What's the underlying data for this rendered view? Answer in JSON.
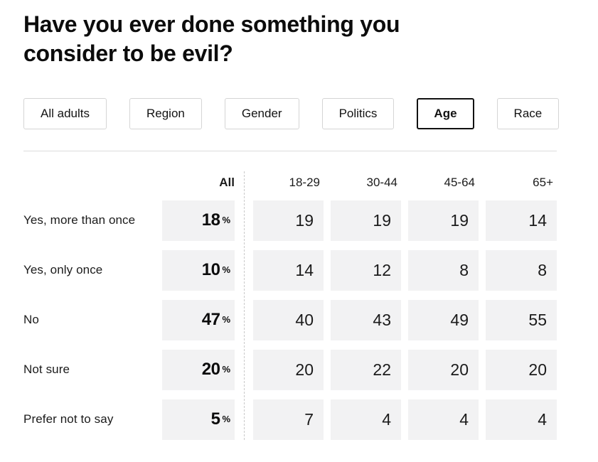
{
  "title": "Have you ever done something you consider to be evil?",
  "tabs": [
    {
      "label": "All adults",
      "active": false
    },
    {
      "label": "Region",
      "active": false
    },
    {
      "label": "Gender",
      "active": false
    },
    {
      "label": "Politics",
      "active": false
    },
    {
      "label": "Age",
      "active": true
    },
    {
      "label": "Race",
      "active": false
    }
  ],
  "table": {
    "all_header": "All",
    "percent_sign": "%",
    "col_headers": [
      "18-29",
      "30-44",
      "45-64",
      "65+"
    ],
    "rows": [
      {
        "label": "Yes, more than once",
        "all": "18",
        "values": [
          "19",
          "19",
          "19",
          "14"
        ]
      },
      {
        "label": "Yes, only once",
        "all": "10",
        "values": [
          "14",
          "12",
          "8",
          "8"
        ]
      },
      {
        "label": "No",
        "all": "47",
        "values": [
          "40",
          "43",
          "49",
          "55"
        ]
      },
      {
        "label": "Not sure",
        "all": "20",
        "values": [
          "20",
          "22",
          "20",
          "20"
        ]
      },
      {
        "label": "Prefer not to say",
        "all": "5",
        "values": [
          "7",
          "4",
          "4",
          "4"
        ]
      }
    ]
  },
  "colors": {
    "cell_background": "#f2f2f3",
    "active_tab_border": "#111111",
    "tab_border": "#d5d5d5",
    "dashed_divider": "#c9c9c9",
    "rule": "#dcdcdc",
    "text": "#131313"
  },
  "chart_data": {
    "type": "table",
    "title": "Have you ever done something you consider to be evil?",
    "filters": [
      "All adults",
      "Region",
      "Gender",
      "Politics",
      "Age",
      "Race"
    ],
    "active_filter": "Age",
    "categories": [
      "Yes, more than once",
      "Yes, only once",
      "No",
      "Not sure",
      "Prefer not to say"
    ],
    "series": [
      {
        "name": "All",
        "unit": "%",
        "values": [
          18,
          10,
          47,
          20,
          5
        ]
      },
      {
        "name": "18-29",
        "values": [
          19,
          14,
          40,
          20,
          7
        ]
      },
      {
        "name": "30-44",
        "values": [
          19,
          12,
          43,
          22,
          4
        ]
      },
      {
        "name": "45-64",
        "values": [
          19,
          8,
          49,
          20,
          4
        ]
      },
      {
        "name": "65+",
        "values": [
          14,
          8,
          55,
          20,
          4
        ]
      }
    ]
  }
}
